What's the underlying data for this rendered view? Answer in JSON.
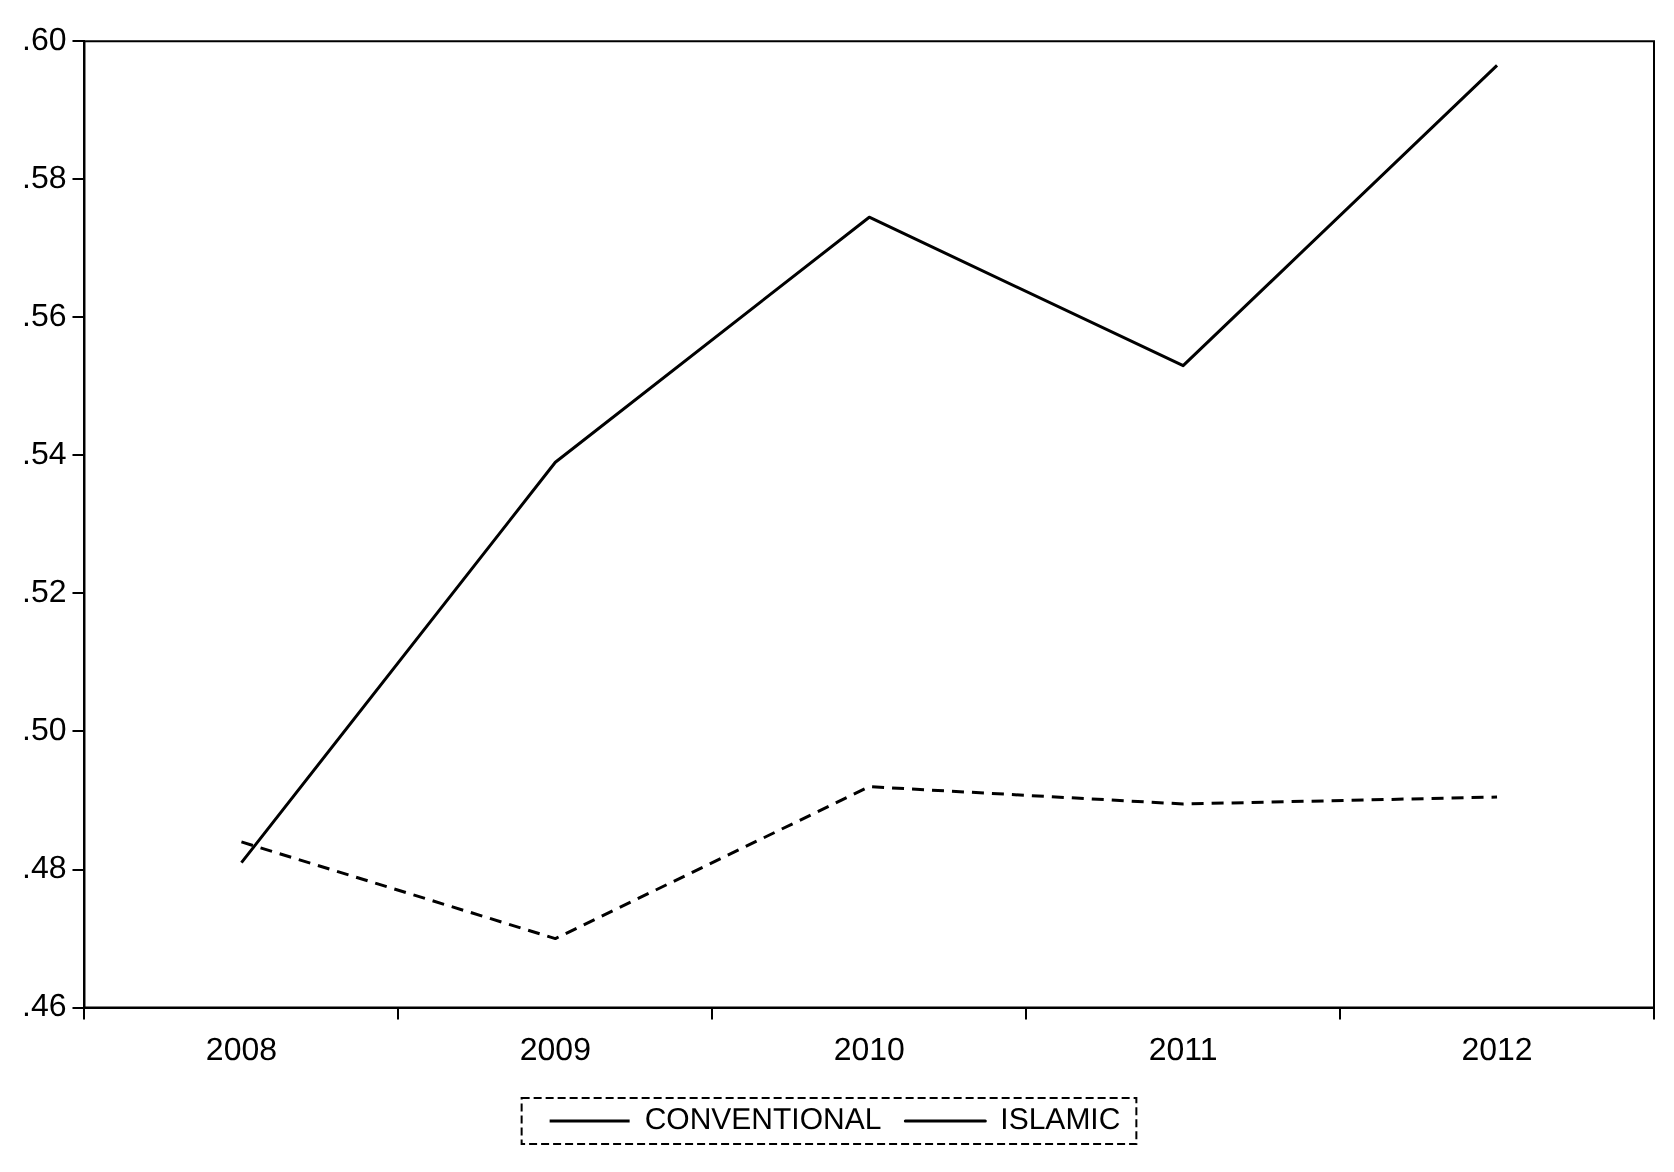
{
  "chart_data": {
    "type": "line",
    "categories": [
      "2008",
      "2009",
      "2010",
      "2011",
      "2012"
    ],
    "series": [
      {
        "name": "CONVENTIONAL",
        "color": "#000000",
        "line_style": "dashed",
        "values": [
          0.484,
          0.47,
          0.492,
          0.4895,
          0.4905
        ]
      },
      {
        "name": "ISLAMIC",
        "color": "#000000",
        "line_style": "solid",
        "values": [
          0.481,
          0.539,
          0.5745,
          0.553,
          0.5965
        ]
      }
    ],
    "ylim": [
      0.46,
      0.6
    ],
    "yticks": [
      {
        "value": 0.46,
        "label": ".46"
      },
      {
        "value": 0.48,
        "label": ".48"
      },
      {
        "value": 0.5,
        "label": ".50"
      },
      {
        "value": 0.52,
        "label": ".52"
      },
      {
        "value": 0.54,
        "label": ".54"
      },
      {
        "value": 0.56,
        "label": ".56"
      },
      {
        "value": 0.58,
        "label": ".58"
      },
      {
        "value": 0.6,
        "label": ".60"
      }
    ],
    "grid": false,
    "legend": "bottom",
    "marker": "none"
  }
}
